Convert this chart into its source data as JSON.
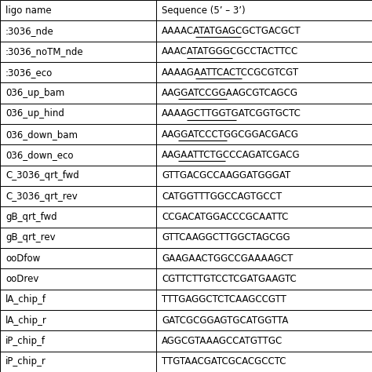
{
  "col_headers": [
    "ligo name",
    "Sequence (5’ – 3’)"
  ],
  "rows": [
    [
      ":3036_nde",
      "AAAACATATGAGCGCTGACGCT"
    ],
    [
      ":3036_noTM_nde",
      "AAACATATGGGCGCCTACTTCC"
    ],
    [
      ":3036_eco",
      "AAAAGAATTCACTCCGCGTCGT"
    ],
    [
      "036_up_bam",
      "AAGGATCCGGAAGCGTCAGCG"
    ],
    [
      "036_up_hind",
      "AAAAGCTTGGTGATCGGTGCTC"
    ],
    [
      "036_down_bam",
      "AAGGATCCCTGGCGGACGACG"
    ],
    [
      "036_down_eco",
      "AAGAATTCTGCCCAGATCGACG"
    ],
    [
      "C_3036_qrt_fwd",
      "GTTGACGCCAAGGATGGGAT"
    ],
    [
      "C_3036_qrt_rev",
      "CATGGTTTGGCCAGTGCCT"
    ],
    [
      "gB_qrt_fwd",
      "CCGACATGGACCCGCAATTC"
    ],
    [
      "gB_qrt_rev",
      "GTTCAAGGCTTGGCTAGCGG"
    ],
    [
      "ooDfow",
      "GAAGAACTGGCCGAAAAGCT"
    ],
    [
      "ooDrev",
      "CGTTCTTGTCCTCGATGAAGTC"
    ],
    [
      "lA_chip_f",
      "TTTGAGGCTCTCAAGCCGTT"
    ],
    [
      "lA_chip_r",
      "GATCGCGGAGTGCATGGTTA"
    ],
    [
      "iP_chip_f",
      "AGGCGTAAAGCCATGTTGC"
    ],
    [
      "iP_chip_r",
      "TTGTAACGATCGCACGCCTC"
    ]
  ],
  "underline_info": [
    [
      0,
      4,
      10
    ],
    [
      1,
      3,
      9
    ],
    [
      2,
      4,
      10
    ],
    [
      3,
      2,
      8
    ],
    [
      4,
      3,
      9
    ],
    [
      5,
      2,
      8
    ],
    [
      6,
      2,
      8
    ]
  ],
  "col_split": 0.42,
  "font_size": 8.5,
  "header_font_size": 8.5,
  "bg_color": "#ffffff",
  "border_color": "#000000",
  "text_color": "#000000"
}
